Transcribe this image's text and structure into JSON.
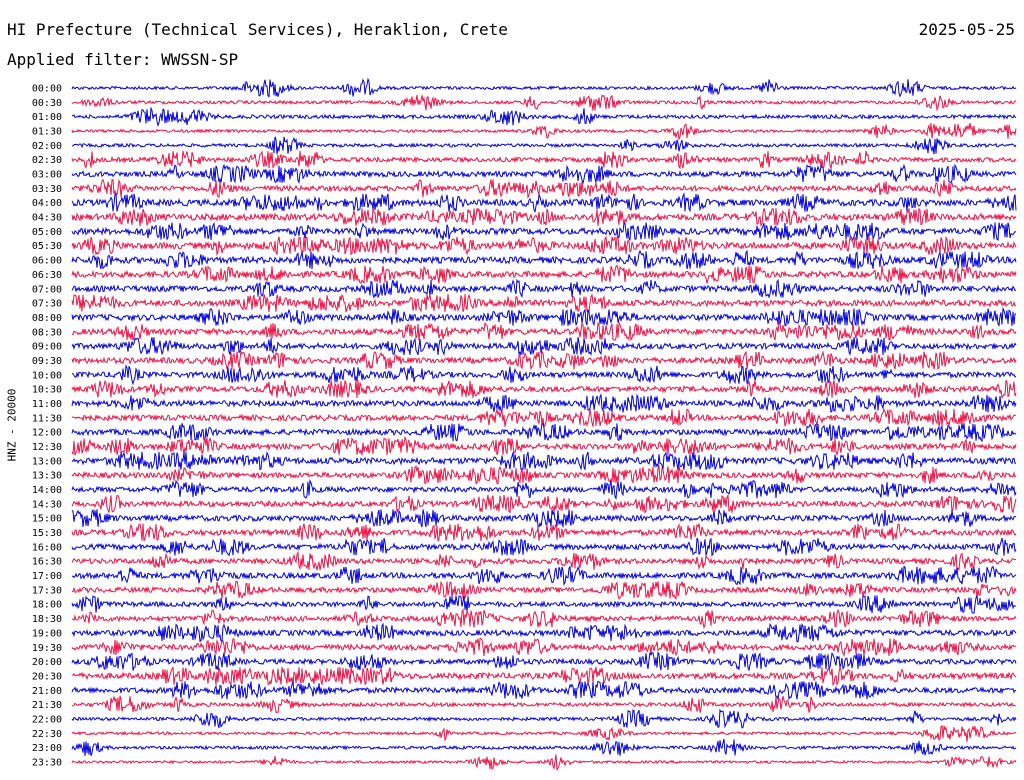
{
  "header": {
    "station": "HI Prefecture (Technical Services), Heraklion, Crete",
    "date": "2025-05-25",
    "filter": "Applied filter: WWSSN-SP"
  },
  "channel_label": "HNZ - 20000",
  "colors": {
    "trace_a": "#0000dd",
    "trace_b": "#ee1144",
    "background": "#ffffff"
  },
  "chart_data": {
    "type": "line",
    "title": "HI Prefecture (Technical Services), Heraklion, Crete",
    "ylabel": "HNZ - 20000",
    "grid": false,
    "rows": [
      {
        "time": "00:00",
        "activity": 1.0
      },
      {
        "time": "00:30",
        "activity": 1.1
      },
      {
        "time": "01:00",
        "activity": 1.3
      },
      {
        "time": "01:30",
        "activity": 0.9
      },
      {
        "time": "02:00",
        "activity": 1.1
      },
      {
        "time": "02:30",
        "activity": 1.8
      },
      {
        "time": "03:00",
        "activity": 2.3
      },
      {
        "time": "03:30",
        "activity": 2.2
      },
      {
        "time": "04:00",
        "activity": 2.8
      },
      {
        "time": "04:30",
        "activity": 2.9
      },
      {
        "time": "05:00",
        "activity": 2.7
      },
      {
        "time": "05:30",
        "activity": 2.9
      },
      {
        "time": "06:00",
        "activity": 2.8
      },
      {
        "time": "06:30",
        "activity": 2.7
      },
      {
        "time": "07:00",
        "activity": 2.6
      },
      {
        "time": "07:30",
        "activity": 2.7
      },
      {
        "time": "08:00",
        "activity": 2.6
      },
      {
        "time": "08:30",
        "activity": 2.6
      },
      {
        "time": "09:00",
        "activity": 2.4
      },
      {
        "time": "09:30",
        "activity": 2.5
      },
      {
        "time": "10:00",
        "activity": 2.3
      },
      {
        "time": "10:30",
        "activity": 2.4
      },
      {
        "time": "11:00",
        "activity": 2.5
      },
      {
        "time": "11:30",
        "activity": 2.4
      },
      {
        "time": "12:00",
        "activity": 2.4
      },
      {
        "time": "12:30",
        "activity": 2.5
      },
      {
        "time": "13:00",
        "activity": 2.8
      },
      {
        "time": "13:30",
        "activity": 2.3
      },
      {
        "time": "14:00",
        "activity": 2.2
      },
      {
        "time": "14:30",
        "activity": 2.3
      },
      {
        "time": "15:00",
        "activity": 2.4
      },
      {
        "time": "15:30",
        "activity": 2.4
      },
      {
        "time": "16:00",
        "activity": 2.3
      },
      {
        "time": "16:30",
        "activity": 2.2
      },
      {
        "time": "17:00",
        "activity": 2.4
      },
      {
        "time": "17:30",
        "activity": 2.2
      },
      {
        "time": "18:00",
        "activity": 2.0
      },
      {
        "time": "18:30",
        "activity": 2.1
      },
      {
        "time": "19:00",
        "activity": 2.4
      },
      {
        "time": "19:30",
        "activity": 2.3
      },
      {
        "time": "20:00",
        "activity": 2.1
      },
      {
        "time": "20:30",
        "activity": 2.6
      },
      {
        "time": "21:00",
        "activity": 2.3
      },
      {
        "time": "21:30",
        "activity": 1.4
      },
      {
        "time": "22:00",
        "activity": 1.1
      },
      {
        "time": "22:30",
        "activity": 0.8
      },
      {
        "time": "23:00",
        "activity": 1.0
      },
      {
        "time": "23:30",
        "activity": 0.7
      }
    ]
  }
}
